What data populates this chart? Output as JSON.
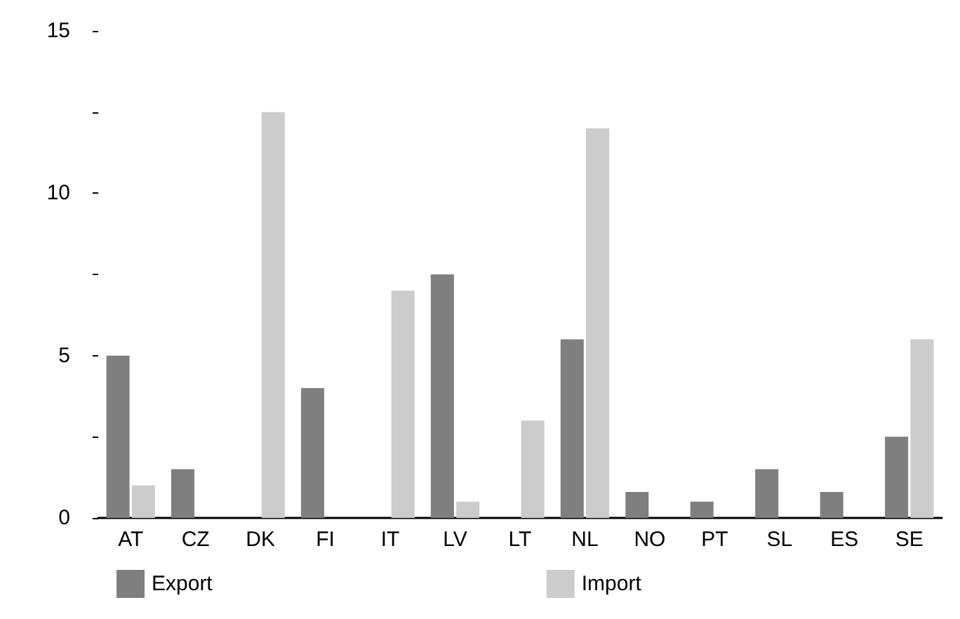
{
  "chart_data": {
    "type": "bar",
    "categories": [
      "AT",
      "CZ",
      "DK",
      "FI",
      "IT",
      "LV",
      "LT",
      "NL",
      "NO",
      "PT",
      "SL",
      "ES",
      "SE"
    ],
    "series": [
      {
        "name": "Export",
        "color": "#7f7f7f",
        "values": [
          5,
          1.5,
          null,
          4,
          null,
          7.5,
          null,
          5.5,
          0.8,
          0.5,
          1.5,
          0.8,
          2.5
        ]
      },
      {
        "name": "Import",
        "color": "#cccccc",
        "values": [
          1,
          null,
          12.5,
          null,
          7,
          0.5,
          3,
          12,
          null,
          null,
          null,
          null,
          5.5
        ]
      }
    ],
    "ylim": [
      0,
      15
    ],
    "yticks": [
      0,
      {
        "value": 2.5,
        "label": null
      },
      5,
      {
        "value": 7.5,
        "label": null
      },
      10,
      {
        "value": 12.5,
        "label": null
      },
      15
    ],
    "grid": false,
    "legend": "bottom"
  }
}
